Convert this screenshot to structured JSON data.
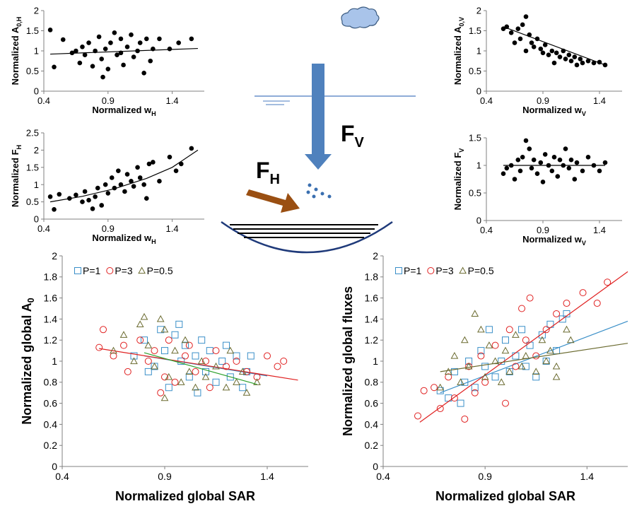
{
  "chart_data": [
    {
      "type": "scatter",
      "xlabel": "Normalized w",
      "xlabel_subscript": "H",
      "ylabel": "Normalized A",
      "ylabel_subscript": "0,H",
      "xlim": [
        0.4,
        1.65
      ],
      "ylim": [
        0,
        2
      ],
      "xticks": [
        0.4,
        0.9,
        1.4
      ],
      "yticks": [
        0,
        0.5,
        1,
        1.5,
        2
      ],
      "series": [
        {
          "color": "#000000",
          "marker": "dot",
          "x": [
            0.45,
            0.48,
            0.55,
            0.62,
            0.65,
            0.68,
            0.7,
            0.72,
            0.75,
            0.78,
            0.8,
            0.83,
            0.85,
            0.88,
            0.9,
            0.92,
            0.95,
            0.97,
            1.0,
            1.02,
            1.05,
            1.08,
            1.1,
            1.13,
            1.15,
            1.18,
            1.2,
            1.23,
            1.25,
            1.3,
            1.38,
            1.45,
            1.55,
            0.86,
            1.0
          ],
          "y": [
            1.52,
            0.6,
            1.28,
            0.95,
            1.0,
            0.7,
            1.1,
            0.9,
            1.2,
            0.62,
            1.0,
            1.35,
            0.8,
            1.05,
            0.55,
            1.2,
            1.45,
            0.9,
            1.3,
            0.65,
            1.1,
            1.4,
            0.85,
            1.0,
            1.2,
            0.45,
            1.3,
            0.75,
            1.05,
            1.3,
            1.05,
            1.2,
            1.3,
            0.35,
            0.95
          ],
          "trend": {
            "x": [
              0.45,
              1.6
            ],
            "y": [
              0.92,
              1.06
            ]
          }
        }
      ]
    },
    {
      "type": "scatter",
      "xlabel": "Normalized w",
      "xlabel_subscript": "H",
      "ylabel": "Normalized F",
      "ylabel_subscript": "H",
      "xlim": [
        0.4,
        1.65
      ],
      "ylim": [
        0,
        2.5
      ],
      "xticks": [
        0.4,
        0.9,
        1.4
      ],
      "yticks": [
        0,
        0.5,
        1,
        1.5,
        2,
        2.5
      ],
      "series": [
        {
          "color": "#000000",
          "marker": "dot",
          "x": [
            0.45,
            0.48,
            0.52,
            0.6,
            0.65,
            0.7,
            0.72,
            0.75,
            0.8,
            0.82,
            0.85,
            0.88,
            0.9,
            0.93,
            0.95,
            0.98,
            1.0,
            1.03,
            1.05,
            1.08,
            1.1,
            1.13,
            1.15,
            1.18,
            1.2,
            1.22,
            1.25,
            1.3,
            1.38,
            1.43,
            1.47,
            1.55,
            0.78
          ],
          "y": [
            0.65,
            0.28,
            0.72,
            0.6,
            0.7,
            0.5,
            0.8,
            0.55,
            0.65,
            0.9,
            0.4,
            1.0,
            0.75,
            1.2,
            0.9,
            1.4,
            1.0,
            0.8,
            1.3,
            1.1,
            0.95,
            1.5,
            1.2,
            1.0,
            0.6,
            1.6,
            1.65,
            1.1,
            1.8,
            1.4,
            1.6,
            2.05,
            0.3
          ],
          "trend": {
            "x": [
              0.45,
              0.7,
              0.95,
              1.2,
              1.4,
              1.6
            ],
            "y": [
              0.5,
              0.66,
              0.88,
              1.18,
              1.5,
              2.0
            ]
          }
        }
      ]
    },
    {
      "type": "scatter",
      "xlabel": "Normalized w",
      "xlabel_subscript": "V",
      "ylabel": "Normalized A",
      "ylabel_subscript": "0,V",
      "xlim": [
        0.4,
        1.6
      ],
      "ylim": [
        0,
        2
      ],
      "xticks": [
        0.4,
        0.9,
        1.4
      ],
      "yticks": [
        0,
        0.5,
        1,
        1.5,
        2
      ],
      "series": [
        {
          "color": "#000000",
          "marker": "dot",
          "x": [
            0.55,
            0.58,
            0.62,
            0.65,
            0.68,
            0.7,
            0.72,
            0.75,
            0.75,
            0.78,
            0.8,
            0.82,
            0.85,
            0.88,
            0.9,
            0.92,
            0.95,
            0.98,
            1.0,
            1.02,
            1.05,
            1.08,
            1.1,
            1.13,
            1.15,
            1.18,
            1.2,
            1.23,
            1.25,
            1.3,
            1.35,
            1.4,
            1.45
          ],
          "y": [
            1.55,
            1.6,
            1.45,
            1.2,
            1.55,
            1.3,
            1.65,
            1.85,
            1.0,
            1.4,
            1.2,
            1.1,
            1.3,
            1.05,
            0.95,
            1.15,
            0.9,
            1.0,
            0.7,
            0.95,
            0.85,
            1.0,
            0.8,
            0.9,
            0.75,
            0.85,
            0.65,
            0.8,
            0.7,
            0.75,
            0.7,
            0.72,
            0.65
          ],
          "trend": {
            "x": [
              0.55,
              1.45
            ],
            "y": [
              1.6,
              0.65
            ]
          }
        }
      ]
    },
    {
      "type": "scatter",
      "xlabel": "Normalized w",
      "xlabel_subscript": "V",
      "ylabel": "Normalized F",
      "ylabel_subscript": "V",
      "xlim": [
        0.4,
        1.6
      ],
      "ylim": [
        0,
        1.5
      ],
      "xticks": [
        0.4,
        0.9,
        1.4
      ],
      "yticks": [
        0,
        0.5,
        1,
        1.5
      ],
      "series": [
        {
          "color": "#000000",
          "marker": "dot",
          "x": [
            0.55,
            0.58,
            0.62,
            0.65,
            0.68,
            0.7,
            0.72,
            0.75,
            0.78,
            0.8,
            0.82,
            0.85,
            0.88,
            0.9,
            0.92,
            0.95,
            0.98,
            1.0,
            1.03,
            1.05,
            1.08,
            1.1,
            1.13,
            1.15,
            1.18,
            1.2,
            1.25,
            1.3,
            1.35,
            1.4,
            1.45
          ],
          "y": [
            0.85,
            0.95,
            1.0,
            0.75,
            1.1,
            0.9,
            1.15,
            1.45,
            1.3,
            0.95,
            1.1,
            0.85,
            1.05,
            0.7,
            1.2,
            1.0,
            0.9,
            1.15,
            0.8,
            1.1,
            1.0,
            1.3,
            0.95,
            1.1,
            0.75,
            1.05,
            0.9,
            1.15,
            1.0,
            0.9,
            1.05
          ],
          "trend": {
            "x": [
              0.55,
              1.45
            ],
            "y": [
              1.0,
              1.0
            ]
          }
        }
      ]
    },
    {
      "type": "scatter",
      "xlabel": "Normalized global SAR",
      "ylabel": "Normalized global A",
      "ylabel_subscript": "0",
      "xlim": [
        0.4,
        1.6
      ],
      "ylim": [
        0,
        2
      ],
      "xticks": [
        0.4,
        0.9,
        1.4
      ],
      "yticks": [
        0,
        0.2,
        0.4,
        0.6,
        0.8,
        1,
        1.2,
        1.4,
        1.6,
        1.8,
        2
      ],
      "legend": "upper left",
      "series": [
        {
          "name": "P=1",
          "color": "#3a8fc8",
          "marker": "square",
          "x": [
            0.75,
            0.8,
            0.85,
            0.88,
            0.9,
            0.92,
            0.95,
            0.98,
            1.0,
            1.02,
            1.05,
            1.08,
            1.1,
            1.12,
            1.15,
            1.18,
            1.2,
            1.22,
            1.25,
            1.3,
            1.32,
            1.28,
            0.82,
            0.97,
            1.06
          ],
          "y": [
            1.05,
            1.2,
            0.95,
            1.3,
            1.1,
            0.75,
            1.25,
            1.0,
            1.15,
            0.85,
            1.05,
            1.2,
            0.9,
            1.1,
            0.8,
            1.0,
            1.15,
            0.85,
            1.05,
            0.9,
            1.05,
            0.75,
            0.9,
            1.35,
            0.7
          ],
          "trend": {
            "x": [
              0.8,
              1.4
            ],
            "y": [
              1.05,
              0.86
            ]
          }
        },
        {
          "name": "P=3",
          "color": "#e02020",
          "marker": "circle",
          "x": [
            0.58,
            0.6,
            0.65,
            0.7,
            0.72,
            0.78,
            0.82,
            0.85,
            0.9,
            0.92,
            0.95,
            1.0,
            1.02,
            1.05,
            1.1,
            1.12,
            1.15,
            1.2,
            1.25,
            1.3,
            1.35,
            1.4,
            1.45,
            1.48,
            0.88
          ],
          "y": [
            1.13,
            1.3,
            1.05,
            1.15,
            0.9,
            1.2,
            1.0,
            1.1,
            0.85,
            1.2,
            0.8,
            1.05,
            1.15,
            0.9,
            1.0,
            0.75,
            1.1,
            0.95,
            1.0,
            0.9,
            0.85,
            1.05,
            0.95,
            1.0,
            0.7
          ],
          "trend": {
            "x": [
              0.58,
              1.55
            ],
            "y": [
              1.12,
              0.82
            ]
          }
        },
        {
          "name": "P=0.5",
          "color": "#6b6b30",
          "marker": "triangle",
          "x": [
            0.65,
            0.7,
            0.75,
            0.78,
            0.8,
            0.82,
            0.85,
            0.88,
            0.9,
            0.92,
            0.95,
            0.98,
            1.0,
            1.02,
            1.05,
            1.08,
            1.1,
            1.15,
            1.2,
            1.22,
            1.25,
            1.28,
            1.3,
            1.35,
            0.9
          ],
          "y": [
            1.1,
            1.25,
            1.0,
            1.35,
            1.42,
            1.15,
            0.95,
            1.4,
            1.3,
            0.85,
            1.1,
            0.8,
            1.2,
            0.9,
            0.75,
            1.0,
            0.85,
            0.95,
            0.75,
            1.1,
            0.8,
            0.9,
            0.7,
            0.8,
            0.65
          ],
          "trend": {
            "x": [
              0.8,
              1.35
            ],
            "y": [
              1.08,
              0.78
            ]
          }
        }
      ]
    },
    {
      "type": "scatter",
      "xlabel": "Normalized global SAR",
      "ylabel": "Normalized global fluxes",
      "xlim": [
        0.4,
        1.6
      ],
      "ylim": [
        0,
        2
      ],
      "xticks": [
        0.4,
        0.9,
        1.4
      ],
      "yticks": [
        0,
        0.2,
        0.4,
        0.6,
        0.8,
        1,
        1.2,
        1.4,
        1.6,
        1.8,
        2
      ],
      "legend": "upper left",
      "series": [
        {
          "name": "P=1",
          "color": "#3a8fc8",
          "marker": "square",
          "x": [
            0.68,
            0.72,
            0.75,
            0.8,
            0.82,
            0.85,
            0.88,
            0.9,
            0.92,
            0.95,
            0.98,
            1.0,
            1.02,
            1.05,
            1.08,
            1.1,
            1.12,
            1.15,
            1.18,
            1.2,
            1.22,
            1.25,
            1.28,
            1.3,
            0.78
          ],
          "y": [
            0.72,
            0.65,
            0.9,
            0.8,
            1.0,
            0.75,
            1.1,
            0.95,
            1.3,
            0.85,
            1.0,
            1.2,
            0.9,
            1.05,
            1.3,
            0.95,
            1.15,
            0.85,
            1.25,
            1.0,
            1.35,
            1.1,
            1.4,
            1.45,
            0.6
          ],
          "trend": {
            "x": [
              0.68,
              1.6
            ],
            "y": [
              0.7,
              1.38
            ]
          }
        },
        {
          "name": "P=3",
          "color": "#e02020",
          "marker": "circle",
          "x": [
            0.57,
            0.6,
            0.65,
            0.68,
            0.72,
            0.75,
            0.8,
            0.82,
            0.85,
            0.88,
            0.9,
            0.95,
            1.0,
            1.02,
            1.05,
            1.08,
            1.1,
            1.12,
            1.15,
            1.2,
            1.25,
            1.3,
            1.38,
            1.45,
            1.5
          ],
          "y": [
            0.48,
            0.72,
            0.75,
            0.55,
            0.85,
            0.65,
            0.45,
            0.95,
            0.7,
            1.05,
            0.8,
            1.15,
            0.6,
            1.3,
            0.95,
            1.5,
            1.2,
            1.6,
            1.05,
            1.3,
            1.45,
            1.55,
            1.65,
            1.55,
            1.75
          ],
          "trend": {
            "x": [
              0.58,
              1.6
            ],
            "y": [
              0.42,
              1.85
            ]
          }
        },
        {
          "name": "P=0.5",
          "color": "#6b6b30",
          "marker": "triangle",
          "x": [
            0.68,
            0.72,
            0.75,
            0.78,
            0.8,
            0.82,
            0.85,
            0.88,
            0.9,
            0.92,
            0.95,
            0.98,
            1.0,
            1.02,
            1.05,
            1.08,
            1.1,
            1.15,
            1.18,
            1.2,
            1.22,
            1.25,
            1.3,
            1.32,
            1.25
          ],
          "y": [
            0.75,
            0.9,
            1.05,
            0.8,
            1.2,
            0.95,
            1.45,
            1.3,
            0.85,
            1.15,
            1.0,
            0.8,
            1.1,
            0.9,
            1.25,
            0.95,
            1.05,
            0.9,
            1.2,
            1.0,
            1.1,
            0.85,
            1.3,
            1.2,
            0.95
          ],
          "trend": {
            "x": [
              0.68,
              1.6
            ],
            "y": [
              0.9,
              1.17
            ]
          }
        }
      ]
    }
  ],
  "diagram": {
    "fv": {
      "main": "F",
      "sub": "V"
    },
    "fh": {
      "main": "F",
      "sub": "H"
    }
  }
}
